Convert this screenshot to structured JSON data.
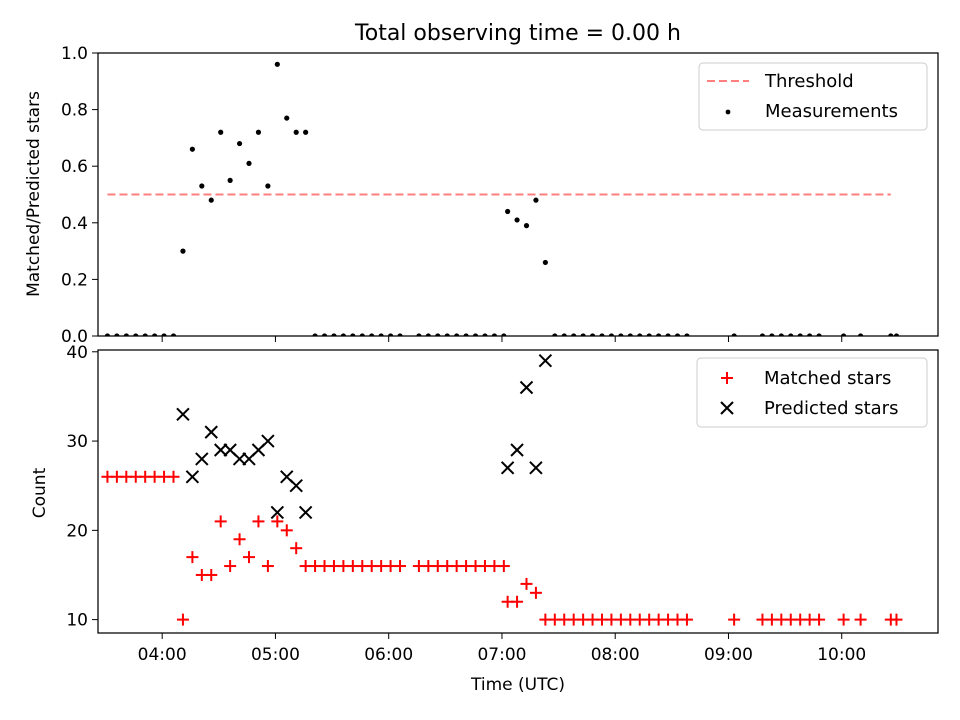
{
  "figure": {
    "title": "Total observing time = 0.00 h"
  },
  "chart_data": [
    {
      "type": "scatter",
      "ylabel": "Matched/Predicted stars",
      "xlabel": "",
      "x_unit": "time-of-day (UTC)",
      "xlim": [
        "03:26",
        "10:51"
      ],
      "ylim": [
        0,
        1.0
      ],
      "y_ticks": [
        "0.0",
        "0.2",
        "0.4",
        "0.6",
        "0.8",
        "1.0"
      ],
      "x_ticks": [
        "04:00",
        "05:00",
        "06:00",
        "07:00",
        "08:00",
        "09:00",
        "10:00"
      ],
      "x_tick_labels_visible": false,
      "grid": false,
      "legend_position": "top-right",
      "series": [
        {
          "name": "Threshold",
          "kind": "dashed-line",
          "color": "#ff7f7f",
          "points": [
            [
              "03:31",
              0.5
            ],
            [
              "10:26",
              0.5
            ]
          ]
        },
        {
          "name": "Measurements",
          "kind": "points",
          "color": "#000000",
          "points": [
            [
              "03:31",
              0
            ],
            [
              "03:36",
              0
            ],
            [
              "03:41",
              0
            ],
            [
              "03:46",
              0
            ],
            [
              "03:51",
              0
            ],
            [
              "03:56",
              0
            ],
            [
              "04:01",
              0
            ],
            [
              "04:06",
              0
            ],
            [
              "04:11",
              0.3
            ],
            [
              "04:16",
              0.66
            ],
            [
              "04:21",
              0.53
            ],
            [
              "04:26",
              0.48
            ],
            [
              "04:31",
              0.72
            ],
            [
              "04:36",
              0.55
            ],
            [
              "04:41",
              0.68
            ],
            [
              "04:46",
              0.61
            ],
            [
              "04:51",
              0.72
            ],
            [
              "04:56",
              0.53
            ],
            [
              "05:01",
              0.96
            ],
            [
              "05:06",
              0.77
            ],
            [
              "05:11",
              0.72
            ],
            [
              "05:16",
              0.72
            ],
            [
              "05:21",
              0
            ],
            [
              "05:26",
              0
            ],
            [
              "05:31",
              0
            ],
            [
              "05:36",
              0
            ],
            [
              "05:41",
              0
            ],
            [
              "05:46",
              0
            ],
            [
              "05:51",
              0
            ],
            [
              "05:56",
              0
            ],
            [
              "06:01",
              0
            ],
            [
              "06:06",
              0
            ],
            [
              "06:16",
              0
            ],
            [
              "06:21",
              0
            ],
            [
              "06:26",
              0
            ],
            [
              "06:31",
              0
            ],
            [
              "06:36",
              0
            ],
            [
              "06:41",
              0
            ],
            [
              "06:46",
              0
            ],
            [
              "06:51",
              0
            ],
            [
              "06:56",
              0
            ],
            [
              "07:01",
              0
            ],
            [
              "07:03",
              0.44
            ],
            [
              "07:08",
              0.41
            ],
            [
              "07:13",
              0.39
            ],
            [
              "07:18",
              0.48
            ],
            [
              "07:23",
              0.26
            ],
            [
              "07:28",
              0
            ],
            [
              "07:33",
              0
            ],
            [
              "07:38",
              0
            ],
            [
              "07:43",
              0
            ],
            [
              "07:48",
              0
            ],
            [
              "07:53",
              0
            ],
            [
              "07:58",
              0
            ],
            [
              "08:03",
              0
            ],
            [
              "08:08",
              0
            ],
            [
              "08:13",
              0
            ],
            [
              "08:18",
              0
            ],
            [
              "08:23",
              0
            ],
            [
              "08:28",
              0
            ],
            [
              "08:33",
              0
            ],
            [
              "08:38",
              0
            ],
            [
              "09:03",
              0
            ],
            [
              "09:18",
              0
            ],
            [
              "09:23",
              0
            ],
            [
              "09:28",
              0
            ],
            [
              "09:33",
              0
            ],
            [
              "09:38",
              0
            ],
            [
              "09:43",
              0
            ],
            [
              "09:48",
              0
            ],
            [
              "10:01",
              0
            ],
            [
              "10:10",
              0
            ],
            [
              "10:26",
              0
            ],
            [
              "10:29",
              0
            ]
          ]
        }
      ]
    },
    {
      "type": "scatter",
      "ylabel": "Count",
      "xlabel": "Time (UTC)",
      "x_unit": "time-of-day (UTC)",
      "xlim": [
        "03:26",
        "10:51"
      ],
      "ylim": [
        8.5,
        40.2
      ],
      "y_ticks": [
        "10",
        "20",
        "30",
        "40"
      ],
      "x_ticks": [
        "04:00",
        "05:00",
        "06:00",
        "07:00",
        "08:00",
        "09:00",
        "10:00"
      ],
      "grid": false,
      "legend_position": "top-right",
      "series": [
        {
          "name": "Matched stars",
          "marker": "plus",
          "color": "#ff0000",
          "points": [
            [
              "03:31",
              26
            ],
            [
              "03:36",
              26
            ],
            [
              "03:41",
              26
            ],
            [
              "03:46",
              26
            ],
            [
              "03:51",
              26
            ],
            [
              "03:56",
              26
            ],
            [
              "04:01",
              26
            ],
            [
              "04:06",
              26
            ],
            [
              "04:11",
              10
            ],
            [
              "04:16",
              17
            ],
            [
              "04:21",
              15
            ],
            [
              "04:26",
              15
            ],
            [
              "04:31",
              21
            ],
            [
              "04:36",
              16
            ],
            [
              "04:41",
              19
            ],
            [
              "04:46",
              17
            ],
            [
              "04:51",
              21
            ],
            [
              "04:56",
              16
            ],
            [
              "05:01",
              21
            ],
            [
              "05:06",
              20
            ],
            [
              "05:11",
              18
            ],
            [
              "05:16",
              16
            ],
            [
              "05:21",
              16
            ],
            [
              "05:26",
              16
            ],
            [
              "05:31",
              16
            ],
            [
              "05:36",
              16
            ],
            [
              "05:41",
              16
            ],
            [
              "05:46",
              16
            ],
            [
              "05:51",
              16
            ],
            [
              "05:56",
              16
            ],
            [
              "06:01",
              16
            ],
            [
              "06:06",
              16
            ],
            [
              "06:16",
              16
            ],
            [
              "06:21",
              16
            ],
            [
              "06:26",
              16
            ],
            [
              "06:31",
              16
            ],
            [
              "06:36",
              16
            ],
            [
              "06:41",
              16
            ],
            [
              "06:46",
              16
            ],
            [
              "06:51",
              16
            ],
            [
              "06:56",
              16
            ],
            [
              "07:01",
              16
            ],
            [
              "07:03",
              12
            ],
            [
              "07:08",
              12
            ],
            [
              "07:13",
              14
            ],
            [
              "07:18",
              13
            ],
            [
              "07:23",
              10
            ],
            [
              "07:28",
              10
            ],
            [
              "07:33",
              10
            ],
            [
              "07:38",
              10
            ],
            [
              "07:43",
              10
            ],
            [
              "07:48",
              10
            ],
            [
              "07:53",
              10
            ],
            [
              "07:58",
              10
            ],
            [
              "08:03",
              10
            ],
            [
              "08:08",
              10
            ],
            [
              "08:13",
              10
            ],
            [
              "08:18",
              10
            ],
            [
              "08:23",
              10
            ],
            [
              "08:28",
              10
            ],
            [
              "08:33",
              10
            ],
            [
              "08:38",
              10
            ],
            [
              "09:03",
              10
            ],
            [
              "09:18",
              10
            ],
            [
              "09:23",
              10
            ],
            [
              "09:28",
              10
            ],
            [
              "09:33",
              10
            ],
            [
              "09:38",
              10
            ],
            [
              "09:43",
              10
            ],
            [
              "09:48",
              10
            ],
            [
              "10:01",
              10
            ],
            [
              "10:10",
              10
            ],
            [
              "10:26",
              10
            ],
            [
              "10:29",
              10
            ]
          ]
        },
        {
          "name": "Predicted stars",
          "marker": "x",
          "color": "#000000",
          "points": [
            [
              "04:11",
              33
            ],
            [
              "04:16",
              26
            ],
            [
              "04:21",
              28
            ],
            [
              "04:26",
              31
            ],
            [
              "04:31",
              29
            ],
            [
              "04:36",
              29
            ],
            [
              "04:41",
              28
            ],
            [
              "04:46",
              28
            ],
            [
              "04:51",
              29
            ],
            [
              "04:56",
              30
            ],
            [
              "05:01",
              22
            ],
            [
              "05:06",
              26
            ],
            [
              "05:11",
              25
            ],
            [
              "05:16",
              22
            ],
            [
              "07:03",
              27
            ],
            [
              "07:08",
              29
            ],
            [
              "07:13",
              36
            ],
            [
              "07:18",
              27
            ],
            [
              "07:23",
              39
            ]
          ]
        }
      ]
    }
  ]
}
